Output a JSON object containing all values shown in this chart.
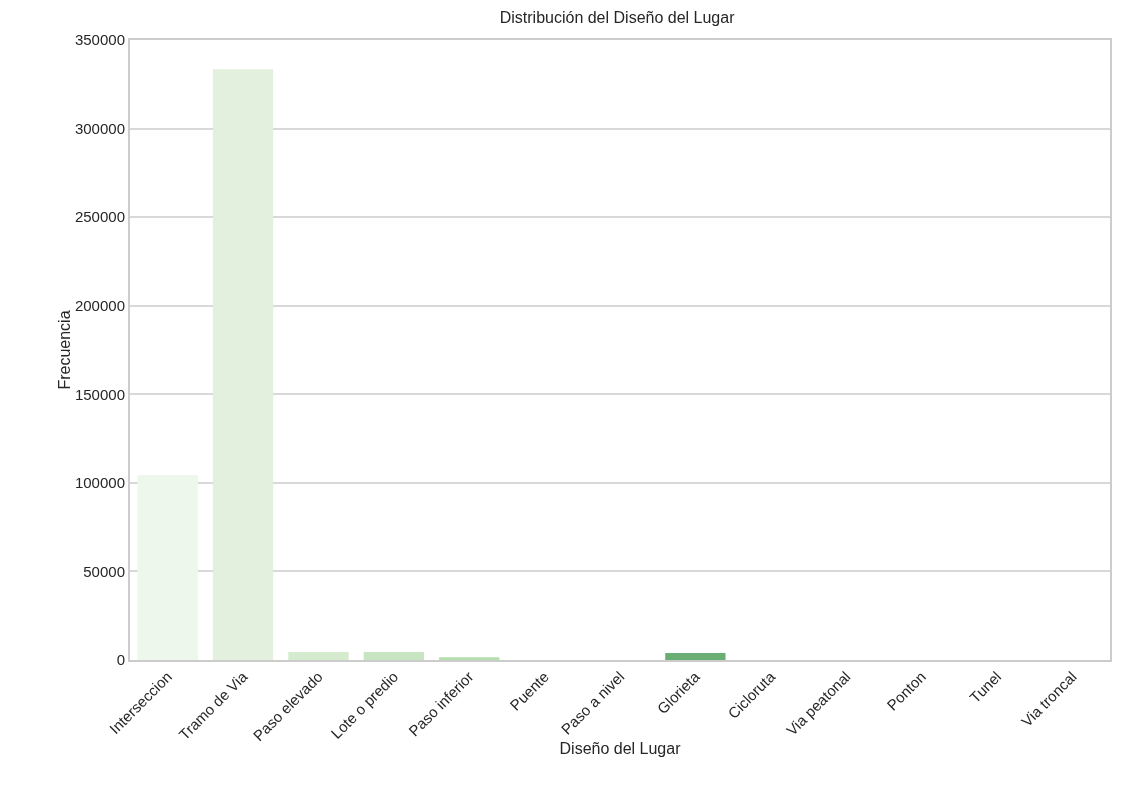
{
  "chart_data": {
    "type": "bar",
    "title": "Distribución del Diseño del Lugar",
    "xlabel": "Diseño del Lugar",
    "ylabel": "Frecuencia",
    "categories": [
      "Interseccion",
      "Tramo de Via",
      "Paso elevado",
      "Lote o predio",
      "Paso inferior",
      "Puente",
      "Paso a nivel",
      "Glorieta",
      "Cicloruta",
      "Via peatonal",
      "Ponton",
      "Tunel",
      "Via troncal"
    ],
    "values": [
      104500,
      333500,
      4500,
      4500,
      1500,
      0,
      0,
      4000,
      0,
      0,
      0,
      0,
      0
    ],
    "colors": [
      "#edf7eb",
      "#e2f0dd",
      "#d5ebcf",
      "#c6e5c0",
      "#b4dfad",
      "#a0d79b",
      "#8ccd88",
      "#6aae76",
      "#5cb466",
      "#43a35a",
      "#30924d",
      "#1d8240",
      "#0b6f32"
    ],
    "ylim": [
      0,
      350000
    ],
    "yticks": [
      0,
      50000,
      100000,
      150000,
      200000,
      250000,
      300000,
      350000
    ],
    "grid": "y"
  }
}
